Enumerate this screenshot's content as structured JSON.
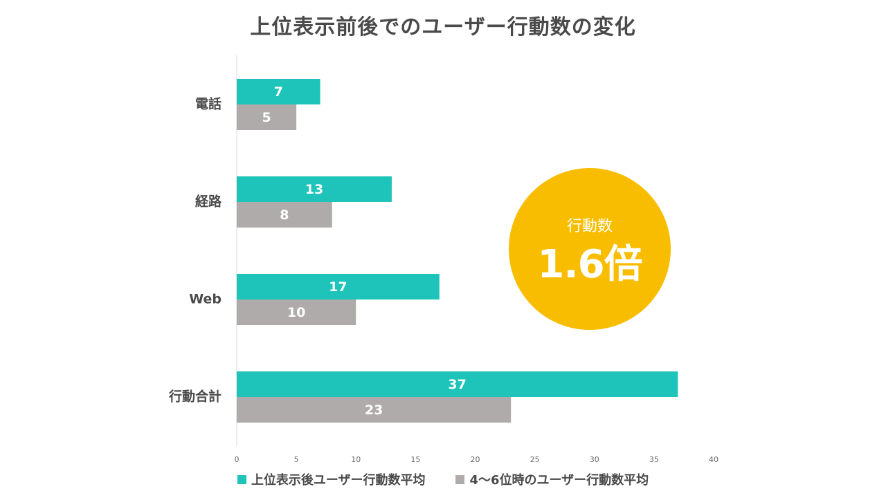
{
  "chart_data": {
    "type": "bar",
    "orientation": "horizontal",
    "title": "上位表示前後でのユーザー行動数の変化",
    "categories": [
      "電話",
      "経路",
      "Web",
      "行動合計"
    ],
    "series": [
      {
        "name": "上位表示後ユーザー行動数平均",
        "color": "#1ec3b9",
        "values": [
          7,
          13,
          17,
          37
        ]
      },
      {
        "name": "4〜6位時のユーザー行動数平均",
        "color": "#afabab",
        "values": [
          5,
          8,
          10,
          23
        ]
      }
    ],
    "xlim": [
      0,
      40
    ],
    "xticks": [
      0,
      5,
      10,
      15,
      20,
      25,
      30,
      35,
      40
    ],
    "grid": false,
    "legend": "bottom"
  },
  "callout": {
    "label": "行動数",
    "value": "1.6倍",
    "color": "#f9bd00"
  }
}
